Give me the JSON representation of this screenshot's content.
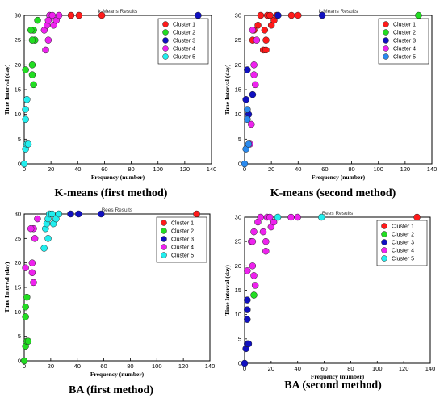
{
  "palette": {
    "Cluster 1": "#ff1a1a",
    "Cluster 2": "#22dd22",
    "Cluster 3": "#1010c0",
    "Cluster 4": "#ee22ee",
    "Cluster 5": "#22eeee",
    "Cluster 5 alt": "#2a8aee"
  },
  "captions": [
    "K-means (first method)",
    "K-means (second method)",
    "BA (first method)",
    "BA (second method)"
  ],
  "chart_data": [
    {
      "type": "scatter",
      "title": "k-Means Results",
      "xlabel": "Frequency (number)",
      "ylabel": "Time Interval (day)",
      "xlim": [
        0,
        140
      ],
      "ylim": [
        0,
        30
      ],
      "xticks": [
        "0",
        "20",
        "40",
        "60",
        "80",
        "100",
        "120",
        "140"
      ],
      "yticks": [
        "0",
        "5",
        "10",
        "15",
        "20",
        "25",
        "30"
      ],
      "grid": false,
      "legend_position": "top-right",
      "series": [
        {
          "name": "Cluster 1",
          "color": "#ff1a1a",
          "points": [
            [
              35,
              30
            ],
            [
              41,
              30
            ],
            [
              58,
              30
            ]
          ]
        },
        {
          "name": "Cluster 2",
          "color": "#22dd22",
          "points": [
            [
              1,
              19
            ],
            [
              6,
              20
            ],
            [
              6,
              18
            ],
            [
              7,
              16
            ],
            [
              7,
              27
            ],
            [
              8,
              25
            ],
            [
              6,
              25
            ],
            [
              10,
              29
            ],
            [
              5,
              27
            ]
          ]
        },
        {
          "name": "Cluster 3",
          "color": "#1010c0",
          "points": [
            [
              130,
              30
            ]
          ]
        },
        {
          "name": "Cluster 4",
          "color": "#ee22ee",
          "points": [
            [
              16,
              23
            ],
            [
              18,
              25
            ],
            [
              15,
              27
            ],
            [
              17,
              28
            ],
            [
              19,
              30
            ],
            [
              21,
              30
            ],
            [
              22,
              28
            ],
            [
              24,
              29
            ],
            [
              26,
              30
            ],
            [
              18,
              29
            ]
          ]
        },
        {
          "name": "Cluster 5",
          "color": "#22eeee",
          "points": [
            [
              0,
              0
            ],
            [
              1,
              3
            ],
            [
              2,
              4
            ],
            [
              1,
              9
            ],
            [
              1,
              11
            ],
            [
              2,
              13
            ],
            [
              3,
              4
            ]
          ]
        }
      ]
    },
    {
      "type": "scatter",
      "title": "k-Means Results",
      "xlabel": "Frequency (number)",
      "ylabel": "Time Interval (day)",
      "xlim": [
        0,
        140
      ],
      "ylim": [
        0,
        30
      ],
      "xticks": [
        "0",
        "20",
        "40",
        "60",
        "80",
        "100",
        "120",
        "140"
      ],
      "yticks": [
        "0",
        "5",
        "10",
        "15",
        "20",
        "25",
        "30"
      ],
      "grid": false,
      "legend_position": "top-right",
      "series": [
        {
          "name": "Cluster 1",
          "color": "#ff1a1a",
          "points": [
            [
              7,
              27
            ],
            [
              10,
              28
            ],
            [
              12,
              30
            ],
            [
              15,
              27
            ],
            [
              16,
              25
            ],
            [
              14,
              23
            ],
            [
              16,
              23
            ],
            [
              17,
              30
            ],
            [
              19,
              30
            ],
            [
              20,
              28
            ],
            [
              22,
              29
            ],
            [
              24,
              30
            ],
            [
              35,
              30
            ],
            [
              40,
              30
            ],
            [
              6,
              25
            ]
          ]
        },
        {
          "name": "Cluster 2",
          "color": "#22dd22",
          "points": [
            [
              130,
              30
            ]
          ]
        },
        {
          "name": "Cluster 3",
          "color": "#1010c0",
          "points": [
            [
              25,
              30
            ],
            [
              58,
              30
            ],
            [
              6,
              14
            ],
            [
              3,
              10
            ],
            [
              1,
              13
            ],
            [
              2,
              19
            ]
          ]
        },
        {
          "name": "Cluster 4",
          "color": "#ee22ee",
          "points": [
            [
              4,
              4
            ],
            [
              5,
              8
            ],
            [
              7,
              20
            ],
            [
              7,
              18
            ],
            [
              8,
              16
            ],
            [
              9,
              25
            ],
            [
              6,
              27
            ]
          ]
        },
        {
          "name": "Cluster 5",
          "color": "#2a8aee",
          "points": [
            [
              0,
              0
            ],
            [
              1,
              3
            ],
            [
              2,
              9
            ],
            [
              2,
              11
            ],
            [
              3,
              4
            ]
          ]
        }
      ]
    },
    {
      "type": "scatter",
      "title": "Bees Results",
      "xlabel": "Frequency (number)",
      "ylabel": "Time Interval (day)",
      "xlim": [
        0,
        140
      ],
      "ylim": [
        0,
        30
      ],
      "xticks": [
        "0",
        "20",
        "40",
        "60",
        "80",
        "100",
        "120",
        "140"
      ],
      "yticks": [
        "0",
        "5",
        "10",
        "15",
        "20",
        "25",
        "30"
      ],
      "grid": false,
      "legend_position": "top-right",
      "series": [
        {
          "name": "Cluster 1",
          "color": "#ff1a1a",
          "points": [
            [
              130,
              30
            ]
          ]
        },
        {
          "name": "Cluster 2",
          "color": "#22dd22",
          "points": [
            [
              0,
              0
            ],
            [
              1,
              3
            ],
            [
              2,
              4
            ],
            [
              1,
              9
            ],
            [
              1,
              11
            ],
            [
              2,
              13
            ],
            [
              3,
              4
            ]
          ]
        },
        {
          "name": "Cluster 3",
          "color": "#1010c0",
          "points": [
            [
              35,
              30
            ],
            [
              41,
              30
            ],
            [
              58,
              30
            ]
          ]
        },
        {
          "name": "Cluster 4",
          "color": "#ee22ee",
          "points": [
            [
              1,
              19
            ],
            [
              6,
              20
            ],
            [
              6,
              18
            ],
            [
              7,
              16
            ],
            [
              7,
              27
            ],
            [
              8,
              25
            ],
            [
              5,
              27
            ],
            [
              10,
              29
            ]
          ]
        },
        {
          "name": "Cluster 5",
          "color": "#22eeee",
          "points": [
            [
              15,
              23
            ],
            [
              16,
              27
            ],
            [
              17,
              28
            ],
            [
              18,
              29
            ],
            [
              19,
              30
            ],
            [
              21,
              30
            ],
            [
              22,
              28
            ],
            [
              24,
              29
            ],
            [
              26,
              30
            ],
            [
              18,
              25
            ]
          ]
        }
      ]
    },
    {
      "type": "scatter",
      "title": "Bees Results",
      "xlabel": "Frequency (number)",
      "ylabel": "Time Interval (day)",
      "xlim": [
        0,
        140
      ],
      "ylim": [
        0,
        30
      ],
      "xticks": [
        "0",
        "20",
        "40",
        "60",
        "80",
        "100",
        "120",
        "140"
      ],
      "yticks": [
        "0",
        "5",
        "10",
        "15",
        "20",
        "25",
        "30"
      ],
      "grid": false,
      "legend_position": "top-right",
      "series": [
        {
          "name": "Cluster 1",
          "color": "#ff1a1a",
          "points": [
            [
              130,
              30
            ]
          ]
        },
        {
          "name": "Cluster 2",
          "color": "#22dd22",
          "points": [
            [
              7,
              14
            ]
          ]
        },
        {
          "name": "Cluster 3",
          "color": "#1010c0",
          "points": [
            [
              0,
              0
            ],
            [
              1,
              3
            ],
            [
              2,
              4
            ],
            [
              2,
              9
            ],
            [
              2,
              11
            ],
            [
              2,
              13
            ],
            [
              3,
              4
            ]
          ]
        },
        {
          "name": "Cluster 4",
          "color": "#ee22ee",
          "points": [
            [
              2,
              19
            ],
            [
              5,
              25
            ],
            [
              7,
              27
            ],
            [
              6,
              25
            ],
            [
              6,
              20
            ],
            [
              7,
              18
            ],
            [
              8,
              16
            ],
            [
              10,
              29
            ],
            [
              12,
              30
            ],
            [
              14,
              27
            ],
            [
              16,
              23
            ],
            [
              16,
              25
            ],
            [
              17,
              30
            ],
            [
              19,
              30
            ],
            [
              20,
              28
            ],
            [
              22,
              29
            ],
            [
              35,
              30
            ],
            [
              40,
              30
            ]
          ]
        },
        {
          "name": "Cluster 5",
          "color": "#22eeee",
          "points": [
            [
              25,
              30
            ],
            [
              58,
              30
            ]
          ]
        }
      ]
    }
  ]
}
